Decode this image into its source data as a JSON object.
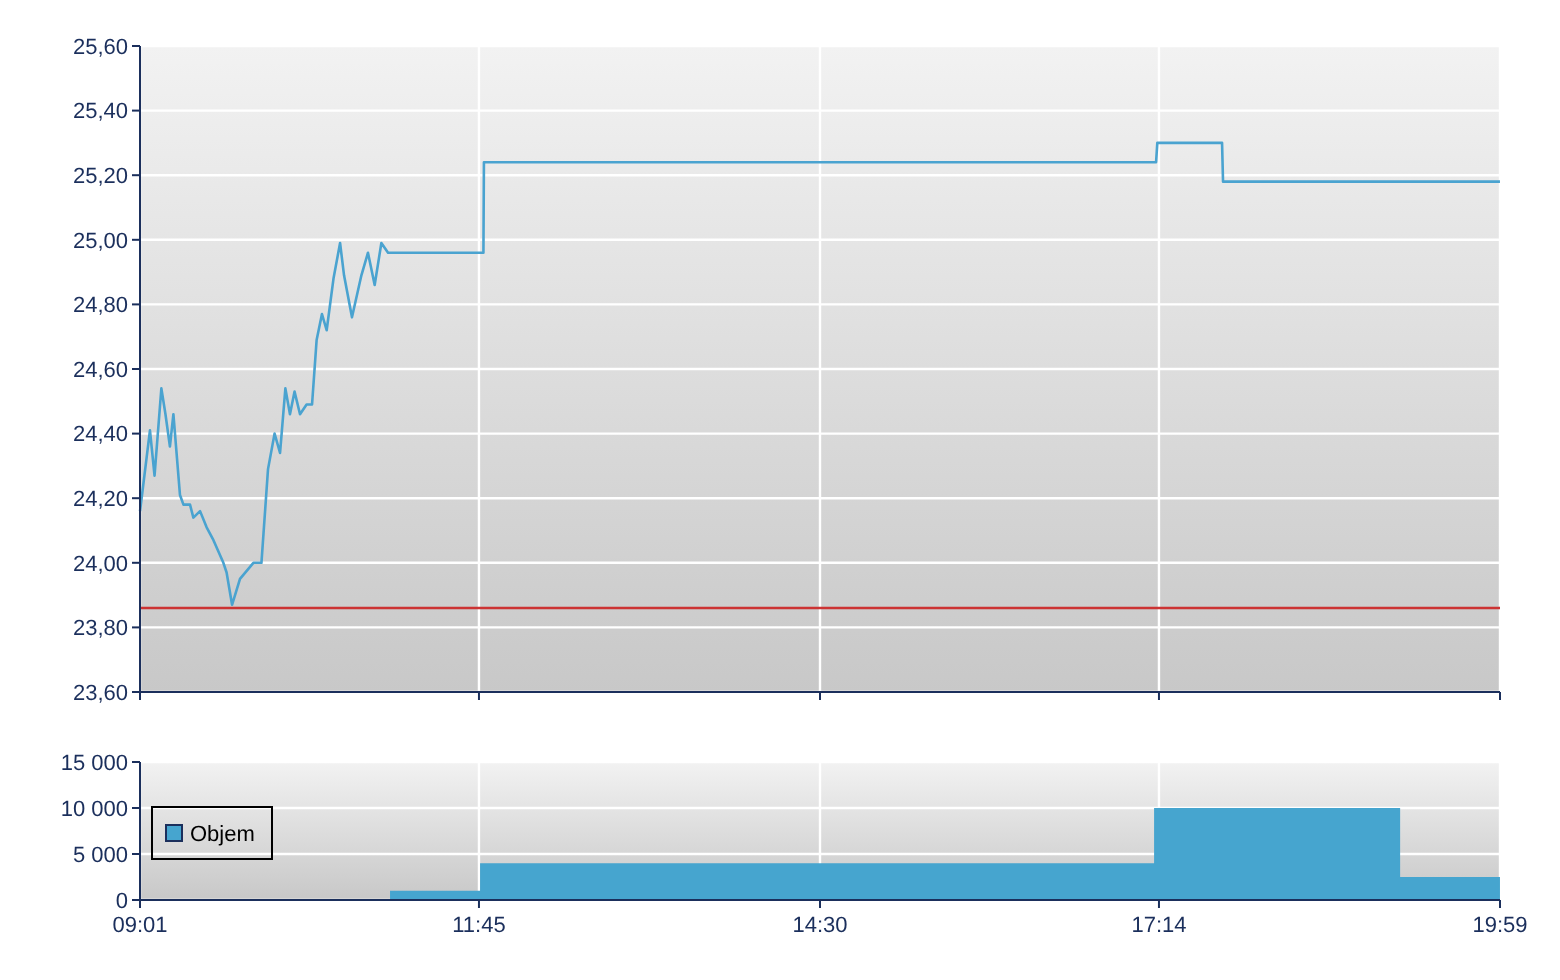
{
  "chart_data": [
    {
      "type": "line",
      "xlim": [
        9.0167,
        19.9833
      ],
      "xticks": [
        {
          "value": 9.0167,
          "label": null
        },
        {
          "value": 11.75,
          "label": null
        },
        {
          "value": 14.5,
          "label": null
        },
        {
          "value": 17.2333,
          "label": null
        },
        {
          "value": 19.9833,
          "label": null
        }
      ],
      "ylim": [
        23.6,
        25.6
      ],
      "yticks": [
        {
          "value": 23.6,
          "label": "23,60"
        },
        {
          "value": 23.8,
          "label": "23,80"
        },
        {
          "value": 24.0,
          "label": "24,00"
        },
        {
          "value": 24.2,
          "label": "24,20"
        },
        {
          "value": 24.4,
          "label": "24,40"
        },
        {
          "value": 24.6,
          "label": "24,60"
        },
        {
          "value": 24.8,
          "label": "24,80"
        },
        {
          "value": 25.0,
          "label": "25,00"
        },
        {
          "value": 25.2,
          "label": "25,20"
        },
        {
          "value": 25.4,
          "label": "25,40"
        },
        {
          "value": 25.6,
          "label": "25,60"
        }
      ],
      "grid": true,
      "tick_labels": "y",
      "legend": false,
      "series": [
        {
          "color": "#4aa3d0",
          "x": [
            9.017,
            9.097,
            9.134,
            9.189,
            9.222,
            9.258,
            9.286,
            9.339,
            9.367,
            9.42,
            9.447,
            9.501,
            9.554,
            9.609,
            9.689,
            9.715,
            9.759,
            9.823,
            9.931,
            9.996,
            10.049,
            10.102,
            10.146,
            10.189,
            10.226,
            10.263,
            10.307,
            10.36,
            10.404,
            10.441,
            10.484,
            10.522,
            10.577,
            10.63,
            10.662,
            10.726,
            10.802,
            10.855,
            10.909,
            10.963,
            11.017,
            11.786,
            11.79,
            17.21,
            17.22,
            17.742,
            17.75,
            19.983
          ],
          "values": [
            24.16,
            24.41,
            24.27,
            24.54,
            24.46,
            24.36,
            24.46,
            24.21,
            24.18,
            24.18,
            24.14,
            24.16,
            24.11,
            24.07,
            24.0,
            23.97,
            23.87,
            23.95,
            24.0,
            24.0,
            24.29,
            24.4,
            24.34,
            24.54,
            24.46,
            24.53,
            24.46,
            24.49,
            24.49,
            24.69,
            24.77,
            24.72,
            24.88,
            24.99,
            24.89,
            24.76,
            24.89,
            24.96,
            24.86,
            24.99,
            24.96,
            24.96,
            25.24,
            25.24,
            25.3,
            25.3,
            25.18,
            25.18
          ]
        }
      ],
      "ref_lines": [
        {
          "axis": "y",
          "value": 23.86,
          "color": "#cc3333"
        }
      ]
    },
    {
      "type": "area",
      "xlim": [
        9.0167,
        19.9833
      ],
      "xticks": [
        {
          "value": 9.0167,
          "label": "09:01"
        },
        {
          "value": 11.75,
          "label": "11:45"
        },
        {
          "value": 14.5,
          "label": "14:30"
        },
        {
          "value": 17.2333,
          "label": "17:14"
        },
        {
          "value": 19.9833,
          "label": "19:59"
        }
      ],
      "ylim": [
        0,
        15000
      ],
      "yticks": [
        0,
        {
          "value": 5000,
          "label": "5 000"
        },
        {
          "value": 10000,
          "label": "10 000"
        },
        {
          "value": 15000,
          "label": "15 000"
        }
      ],
      "grid": true,
      "legend": "left",
      "series": [
        {
          "name": "Objem",
          "color": "#46a5cf",
          "x": [
            11.033,
            11.759,
            17.194,
            19.178,
            19.983
          ],
          "values": [
            1000,
            4000,
            10000,
            2500,
            2500
          ]
        }
      ]
    }
  ]
}
